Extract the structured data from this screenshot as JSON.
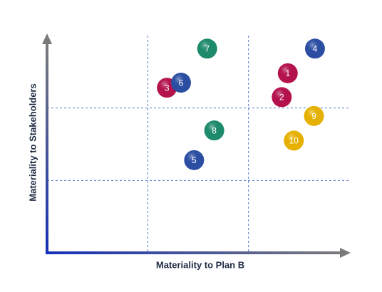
{
  "chart_data": {
    "type": "scatter",
    "x_label": "Materiality to Plan B",
    "y_label": "Materiality to Stakeholders",
    "labels": [
      "1",
      "2",
      "3",
      "4",
      "5",
      "6",
      "7",
      "8",
      "9",
      "10"
    ],
    "x": [
      2.39,
      2.33,
      1.19,
      2.66,
      1.46,
      1.33,
      1.59,
      1.66,
      2.65,
      2.45
    ],
    "values": [
      2.48,
      2.15,
      2.28,
      2.82,
      1.28,
      2.35,
      2.82,
      1.69,
      1.89,
      1.55
    ],
    "colors": [
      "#b3124b",
      "#b3124b",
      "#b3124b",
      "#2b4ea3",
      "#2b4ea3",
      "#2b4ea3",
      "#1d8a6c",
      "#1d8a6c",
      "#e5b000",
      "#e5b000"
    ],
    "xlim": [
      0,
      3
    ],
    "ylim": [
      0,
      3
    ],
    "grid": true
  }
}
